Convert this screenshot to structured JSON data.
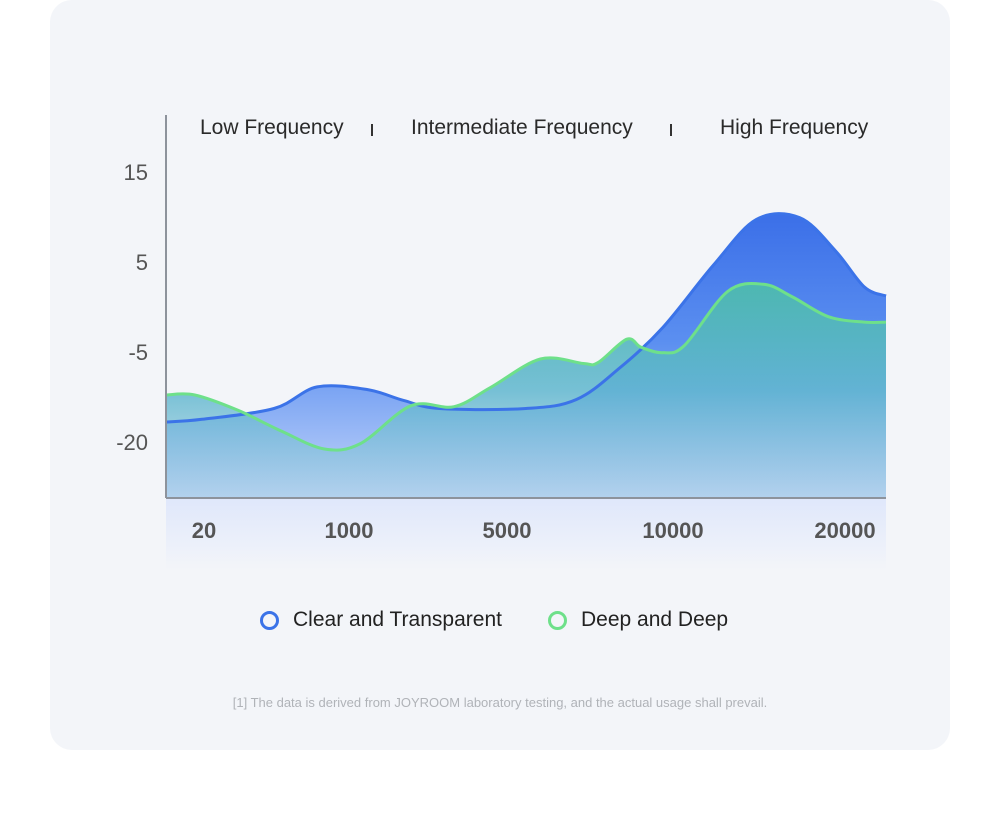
{
  "chart_data": {
    "type": "area",
    "bands": [
      "Low Frequency",
      "Intermediate Frequency",
      "High Frequency"
    ],
    "y_ticks": [
      "15",
      "5",
      "-5",
      "-20"
    ],
    "x_ticks": [
      "20",
      "1000",
      "5000",
      "10000",
      "20000"
    ],
    "ylim": [
      -25,
      18
    ],
    "series": [
      {
        "name": "Clear and Transparent",
        "color": "#3b73e8",
        "x": [
          0,
          0.05,
          0.15,
          0.21,
          0.28,
          0.33,
          0.38,
          0.5,
          0.57,
          0.63,
          0.69,
          0.76,
          0.82,
          0.88,
          0.93,
          0.97,
          1.0
        ],
        "values": [
          -12.5,
          -12.2,
          -11.0,
          -8.6,
          -8.9,
          -10.1,
          -11.0,
          -11.0,
          -10.0,
          -6.5,
          -2.0,
          4.9,
          10.0,
          10.2,
          6.5,
          2.5,
          1.5
        ]
      },
      {
        "name": "Deep and Deep",
        "color": "#6ee08a",
        "x": [
          0,
          0.04,
          0.1,
          0.16,
          0.22,
          0.27,
          0.34,
          0.4,
          0.45,
          0.52,
          0.58,
          0.6,
          0.64,
          0.66,
          0.69,
          0.72,
          0.78,
          0.83,
          0.87,
          0.92,
          0.97,
          1.0
        ],
        "values": [
          -9.5,
          -9.5,
          -11.2,
          -13.5,
          -15.5,
          -14.9,
          -10.7,
          -10.8,
          -8.7,
          -5.5,
          -6.0,
          -5.9,
          -3.3,
          -4.2,
          -4.8,
          -4.0,
          2.0,
          2.8,
          1.4,
          -0.8,
          -1.4,
          -1.4
        ]
      }
    ]
  },
  "footnote": "[1] The data is derived from JOYROOM laboratory testing, and the actual usage shall prevail."
}
